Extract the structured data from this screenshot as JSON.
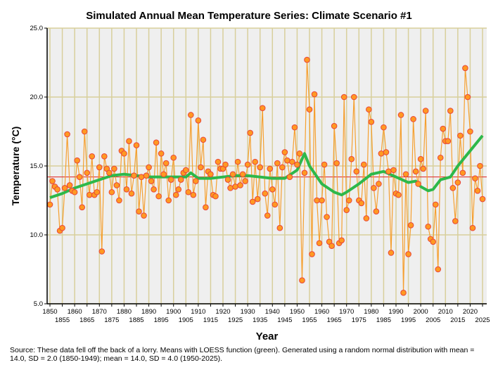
{
  "chart_data": {
    "type": "scatter",
    "title": "Simulated Annual Mean Temperature Series: Climate Scenario #1",
    "xlabel": "Year",
    "ylabel": "Temperature (°C)",
    "xlim": [
      1850,
      2025
    ],
    "ylim": [
      5,
      25
    ],
    "yticks": [
      "5.0",
      "10.0",
      "15.0",
      "20.0",
      "25.0"
    ],
    "xticks": [
      "1850",
      "1855",
      "1860",
      "1865",
      "1870",
      "1875",
      "1880",
      "1885",
      "1890",
      "1895",
      "1900",
      "1905",
      "1910",
      "1915",
      "1920",
      "1925",
      "1930",
      "1935",
      "1940",
      "1945",
      "1950",
      "1955",
      "1960",
      "1965",
      "1970",
      "1975",
      "1980",
      "1985",
      "1990",
      "1995",
      "2000",
      "2005",
      "2010",
      "2015",
      "2020",
      "2025"
    ],
    "grid": true,
    "mean_line": 14.2,
    "x_start": 1850,
    "series": [
      {
        "name": "Annual mean",
        "values": [
          12.2,
          13.9,
          13.5,
          13.3,
          10.3,
          10.5,
          13.4,
          17.3,
          13.6,
          13.2,
          13.1,
          15.4,
          14.2,
          12.0,
          17.5,
          14.5,
          12.9,
          15.7,
          12.9,
          13.1,
          14.9,
          8.8,
          15.7,
          14.8,
          14.5,
          13.1,
          14.8,
          13.6,
          12.5,
          16.1,
          15.9,
          13.3,
          16.8,
          13.0,
          14.3,
          16.5,
          11.7,
          14.2,
          11.4,
          14.3,
          14.9,
          13.9,
          13.3,
          16.7,
          12.8,
          15.9,
          14.4,
          15.2,
          12.5,
          14.0,
          15.6,
          12.9,
          13.3,
          14.0,
          14.5,
          14.7,
          13.1,
          18.7,
          12.9,
          13.9,
          18.3,
          14.9,
          16.9,
          12.0,
          14.6,
          14.4,
          12.9,
          12.8,
          15.3,
          14.8,
          14.8,
          15.1,
          14.0,
          13.4,
          14.4,
          13.5,
          15.3,
          13.6,
          14.4,
          13.9,
          15.1,
          17.4,
          12.4,
          15.3,
          12.6,
          14.9,
          19.2,
          13.0,
          11.4,
          14.8,
          13.3,
          12.2,
          15.2,
          10.5,
          14.9,
          16.0,
          15.4,
          14.2,
          15.3,
          17.8,
          15.1,
          15.9,
          6.7,
          14.5,
          22.7,
          19.1,
          8.6,
          20.2,
          12.5,
          9.4,
          12.5,
          15.1,
          11.3,
          9.5,
          9.2,
          17.9,
          15.2,
          9.4,
          9.6,
          20.0,
          11.8,
          12.5,
          15.5,
          20.0,
          14.6,
          12.5,
          12.3,
          15.1,
          11.2,
          19.1,
          18.2,
          13.4,
          11.7,
          13.7,
          15.9,
          17.8,
          16.0,
          14.6,
          8.7,
          14.7,
          13.0,
          12.9,
          18.7,
          5.8,
          14.4,
          8.6,
          10.7,
          18.4,
          14.6,
          13.7,
          15.5,
          14.8,
          19.0,
          10.6,
          9.7,
          9.5,
          12.2,
          7.5,
          15.6,
          17.7,
          16.8,
          16.8,
          19.0,
          13.4,
          11.0,
          13.8,
          17.2,
          14.5,
          22.1,
          20.0,
          17.5,
          10.5,
          14.1,
          13.2,
          15.0,
          12.6
        ]
      }
    ],
    "loess": {
      "name": "LOESS",
      "x": [
        1850,
        1855,
        1860,
        1865,
        1870,
        1875,
        1880,
        1885,
        1890,
        1895,
        1900,
        1905,
        1907,
        1910,
        1915,
        1920,
        1925,
        1930,
        1935,
        1940,
        1945,
        1950,
        1953,
        1955,
        1960,
        1965,
        1968,
        1970,
        1975,
        1980,
        1985,
        1990,
        1995,
        1998,
        2000,
        2003,
        2005,
        2008,
        2012,
        2015,
        2020,
        2025
      ],
      "y": [
        12.7,
        13.0,
        13.4,
        13.7,
        14.0,
        14.3,
        14.4,
        14.3,
        14.2,
        14.2,
        14.2,
        14.2,
        14.5,
        14.1,
        14.1,
        14.2,
        14.3,
        14.3,
        14.2,
        14.1,
        14.1,
        14.7,
        15.9,
        15.0,
        13.7,
        13.1,
        12.9,
        13.1,
        13.7,
        14.4,
        14.6,
        14.2,
        13.8,
        13.9,
        13.5,
        13.2,
        13.3,
        14.0,
        14.2,
        15.0,
        16.1,
        17.2
      ]
    },
    "colors": {
      "point_fill": "#ff9922",
      "point_stroke": "#e8443a",
      "line": "#f5a030",
      "loess": "#2db84a",
      "mean": "#e02020",
      "grid": "#d8cf9c",
      "bg": "#efefef"
    }
  },
  "source_text": "Source: These data fell off the back of a lorry. Means with LOESS function (green). Generated using a random normal distribution with mean = 14.0, SD = 2.0 (1850-1949); mean = 14.0, SD = 4.0 (1950-2025)."
}
